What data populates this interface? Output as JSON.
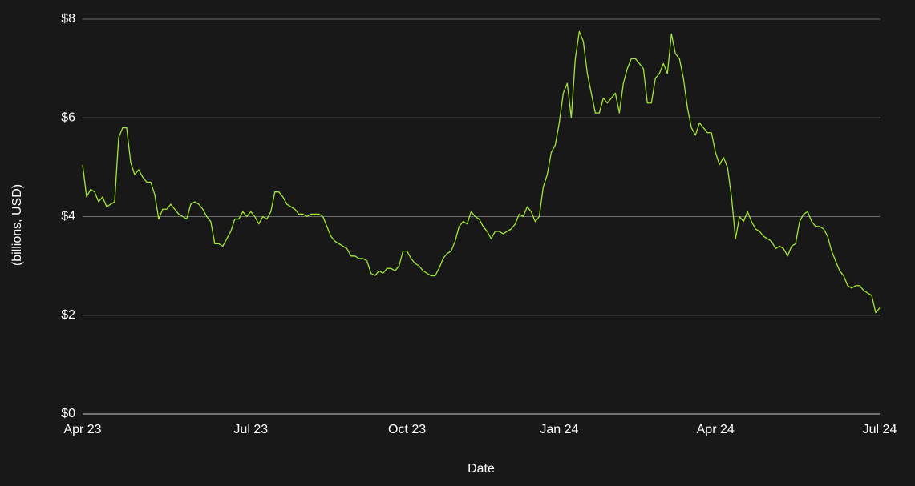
{
  "chart_data": {
    "type": "line",
    "xlabel": "Date",
    "ylabel": "(billions, USD)",
    "color": "#a3e635",
    "grid": true,
    "ylim": [
      0,
      8
    ],
    "yticks": [
      {
        "value": 0,
        "label": "$0"
      },
      {
        "value": 2,
        "label": "$2"
      },
      {
        "value": 4,
        "label": "$4"
      },
      {
        "value": 6,
        "label": "$6"
      },
      {
        "value": 8,
        "label": "$8"
      }
    ],
    "categories": [
      "Apr 23",
      null,
      null,
      null,
      null,
      null,
      null,
      null,
      null,
      null,
      null,
      null,
      null,
      null,
      null,
      null,
      null,
      null,
      null,
      null,
      null,
      null,
      null,
      null,
      null,
      null,
      null,
      null,
      null,
      null,
      null,
      null,
      null,
      null,
      null,
      null,
      null,
      null,
      null,
      null,
      null,
      null,
      "Jul 23",
      null,
      null,
      null,
      null,
      null,
      null,
      null,
      null,
      null,
      null,
      null,
      null,
      null,
      null,
      null,
      null,
      null,
      null,
      null,
      null,
      null,
      null,
      null,
      null,
      null,
      null,
      null,
      null,
      null,
      null,
      null,
      null,
      null,
      null,
      null,
      null,
      null,
      null,
      "Oct 23",
      null,
      null,
      null,
      null,
      null,
      null,
      null,
      null,
      null,
      null,
      null,
      null,
      null,
      null,
      null,
      null,
      null,
      null,
      null,
      null,
      null,
      null,
      null,
      null,
      null,
      null,
      null,
      null,
      null,
      null,
      null,
      null,
      null,
      null,
      null,
      null,
      null,
      "Jan 24",
      null,
      null,
      null,
      null,
      null,
      null,
      null,
      null,
      null,
      null,
      null,
      null,
      null,
      null,
      null,
      null,
      null,
      null,
      null,
      null,
      null,
      null,
      null,
      null,
      null,
      null,
      null,
      null,
      null,
      null,
      null,
      null,
      null,
      null,
      null,
      null,
      null,
      null,
      "Apr 24",
      null,
      null,
      null,
      null,
      null,
      null,
      null,
      null,
      null,
      null,
      null,
      null,
      null,
      null,
      null,
      null,
      null,
      null,
      null,
      null,
      null,
      null,
      null,
      null,
      null,
      null,
      null,
      null,
      null,
      null,
      null,
      null,
      null,
      null,
      null,
      null,
      null,
      null,
      null,
      null,
      "Jul 24"
    ],
    "values": [
      5.05,
      4.4,
      4.55,
      4.5,
      4.3,
      4.4,
      4.2,
      4.25,
      4.3,
      5.6,
      5.8,
      5.8,
      5.1,
      4.85,
      4.95,
      4.8,
      4.7,
      4.7,
      4.45,
      3.95,
      4.15,
      4.15,
      4.25,
      4.15,
      4.05,
      4.0,
      3.95,
      4.25,
      4.3,
      4.25,
      4.15,
      4.0,
      3.9,
      3.45,
      3.45,
      3.4,
      3.55,
      3.7,
      3.95,
      3.95,
      4.1,
      4.0,
      4.1,
      4.0,
      3.85,
      4.0,
      3.95,
      4.1,
      4.5,
      4.5,
      4.4,
      4.25,
      4.2,
      4.15,
      4.05,
      4.05,
      4.0,
      4.05,
      4.05,
      4.05,
      4.0,
      3.8,
      3.6,
      3.5,
      3.45,
      3.4,
      3.35,
      3.2,
      3.2,
      3.15,
      3.15,
      3.1,
      2.85,
      2.8,
      2.9,
      2.85,
      2.95,
      2.95,
      2.9,
      3.0,
      3.3,
      3.3,
      3.15,
      3.05,
      3.0,
      2.9,
      2.85,
      2.8,
      2.8,
      2.95,
      3.15,
      3.25,
      3.3,
      3.5,
      3.8,
      3.9,
      3.85,
      4.1,
      4.0,
      3.95,
      3.8,
      3.7,
      3.55,
      3.7,
      3.7,
      3.65,
      3.7,
      3.75,
      3.85,
      4.05,
      4.0,
      4.2,
      4.1,
      3.9,
      4.0,
      4.6,
      4.85,
      5.3,
      5.45,
      5.9,
      6.5,
      6.7,
      6.0,
      7.2,
      7.75,
      7.55,
      6.9,
      6.5,
      6.1,
      6.1,
      6.4,
      6.3,
      6.4,
      6.5,
      6.1,
      6.7,
      7.0,
      7.2,
      7.2,
      7.1,
      7.0,
      6.3,
      6.3,
      6.8,
      6.9,
      7.1,
      6.9,
      7.7,
      7.3,
      7.2,
      6.8,
      6.2,
      5.8,
      5.65,
      5.9,
      5.8,
      5.7,
      5.7,
      5.3,
      5.05,
      5.2,
      5.0,
      4.4,
      3.55,
      4.0,
      3.9,
      4.1,
      3.9,
      3.75,
      3.7,
      3.6,
      3.55,
      3.5,
      3.35,
      3.4,
      3.35,
      3.2,
      3.4,
      3.45,
      3.9,
      4.05,
      4.1,
      3.9,
      3.8,
      3.8,
      3.75,
      3.6,
      3.3,
      3.1,
      2.9,
      2.8,
      2.6,
      2.55,
      2.6,
      2.6,
      2.5,
      2.45,
      2.4,
      2.05,
      2.15
    ]
  }
}
